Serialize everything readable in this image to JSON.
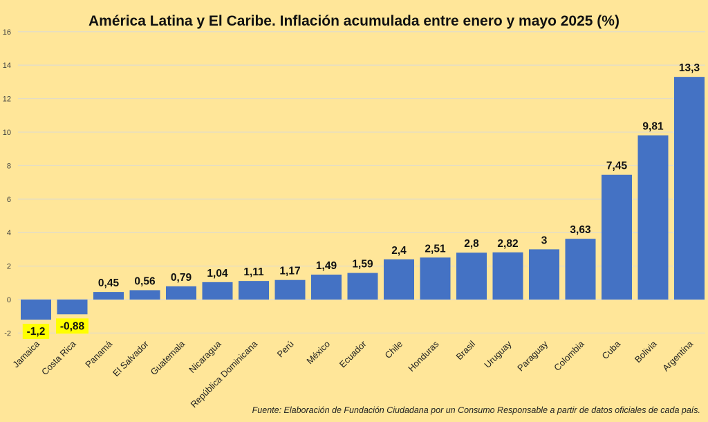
{
  "chart_data": {
    "type": "bar",
    "title": "América Latina y El Caribe. Inflación acumulada entre enero y mayo 2025 (%)",
    "xlabel": "",
    "ylabel": "",
    "ylim": [
      -2,
      16
    ],
    "yticks": [
      -2,
      0,
      2,
      4,
      6,
      8,
      10,
      12,
      14,
      16
    ],
    "grid": true,
    "legend": "none",
    "categories": [
      "Jamaica",
      "Costa Rica",
      "Panamá",
      "El Salvador",
      "Guatemala",
      "Nicaragua",
      "República Dominicana",
      "Perú",
      "México",
      "Ecuador",
      "Chile",
      "Honduras",
      "Brasil",
      "Uruguay",
      "Paraguay",
      "Colombia",
      "Cuba",
      "Bolivia",
      "Argentina"
    ],
    "values": [
      -1.2,
      -0.88,
      0.45,
      0.56,
      0.79,
      1.04,
      1.11,
      1.17,
      1.49,
      1.59,
      2.4,
      2.51,
      2.8,
      2.82,
      3,
      3.63,
      7.45,
      9.81,
      13.3
    ],
    "data_labels": [
      "-1,2",
      "-0,88",
      "0,45",
      "0,56",
      "0,79",
      "1,04",
      "1,11",
      "1,17",
      "1,49",
      "1,59",
      "2,4",
      "2,51",
      "2,8",
      "2,82",
      "3",
      "3,63",
      "7,45",
      "9,81",
      "13,3"
    ],
    "highlighted_labels": [
      "Jamaica",
      "Costa Rica"
    ],
    "source": "Fuente: Elaboración de Fundación Ciudadana por un Consumo Responsable a partir de datos oficiales de cada país."
  },
  "colors": {
    "background": "#FFE699",
    "bar": "#4472C4",
    "highlight": "#FFFF00",
    "grid": "#E2DCC8"
  }
}
